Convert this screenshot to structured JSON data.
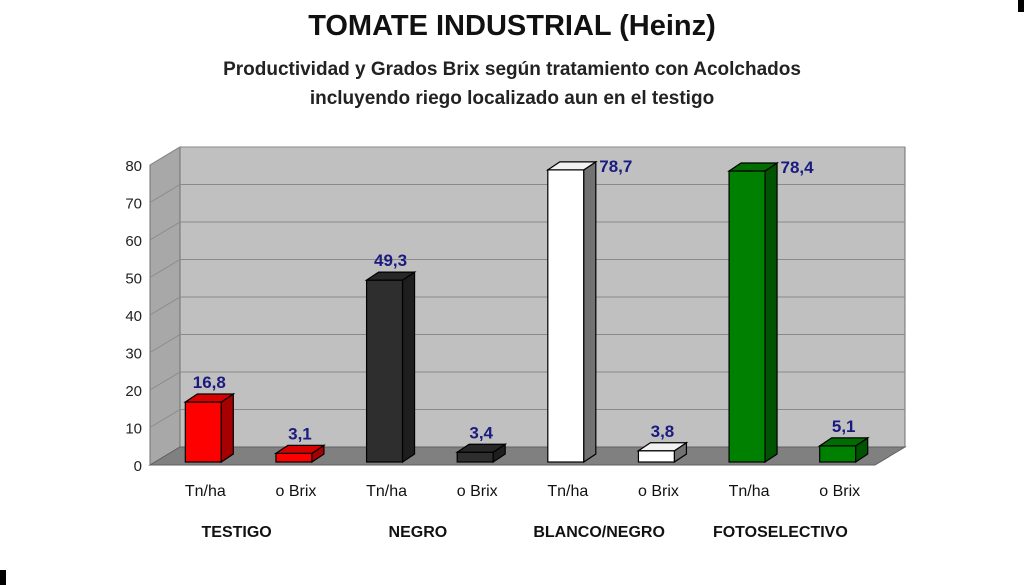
{
  "title": "TOMATE INDUSTRIAL (Heinz)",
  "subtitle_lines": [
    "Productividad y Grados Brix según tratamiento con Acolchados",
    "incluyendo riego localizado aun en el testigo"
  ],
  "chart_data": {
    "type": "bar",
    "ylim": [
      0,
      80
    ],
    "yticks": [
      "0",
      "10",
      "20",
      "30",
      "40",
      "50",
      "60",
      "70",
      "80"
    ],
    "grid": true,
    "groups": [
      "TESTIGO",
      "NEGRO",
      "BLANCO/NEGRO",
      "FOTOSELECTIVO"
    ],
    "bars": [
      {
        "group": "TESTIGO",
        "label": "Tn/ha",
        "value": 16.8,
        "value_label": "16,8",
        "color": "#ff0000"
      },
      {
        "group": "TESTIGO",
        "label": "o Brix",
        "value": 3.1,
        "value_label": "3,1",
        "color": "#ff0000"
      },
      {
        "group": "NEGRO",
        "label": "Tn/ha",
        "value": 49.3,
        "value_label": "49,3",
        "color": "#2e2e2e"
      },
      {
        "group": "NEGRO",
        "label": "o Brix",
        "value": 3.4,
        "value_label": "3,4",
        "color": "#2e2e2e"
      },
      {
        "group": "BLANCO/NEGRO",
        "label": "Tn/ha",
        "value": 78.7,
        "value_label": "78,7",
        "color": "#ffffff"
      },
      {
        "group": "BLANCO/NEGRO",
        "label": "o Brix",
        "value": 3.8,
        "value_label": "3,8",
        "color": "#ffffff"
      },
      {
        "group": "FOTOSELECTIVO",
        "label": "Tn/ha",
        "value": 78.4,
        "value_label": "78,4",
        "color": "#008000"
      },
      {
        "group": "FOTOSELECTIVO",
        "label": "o Brix",
        "value": 5.1,
        "value_label": "5,1",
        "color": "#008000"
      }
    ],
    "colors": {
      "wall": "#c0c0c0",
      "floor": "#808080",
      "value_label": "#1a1a80"
    }
  }
}
